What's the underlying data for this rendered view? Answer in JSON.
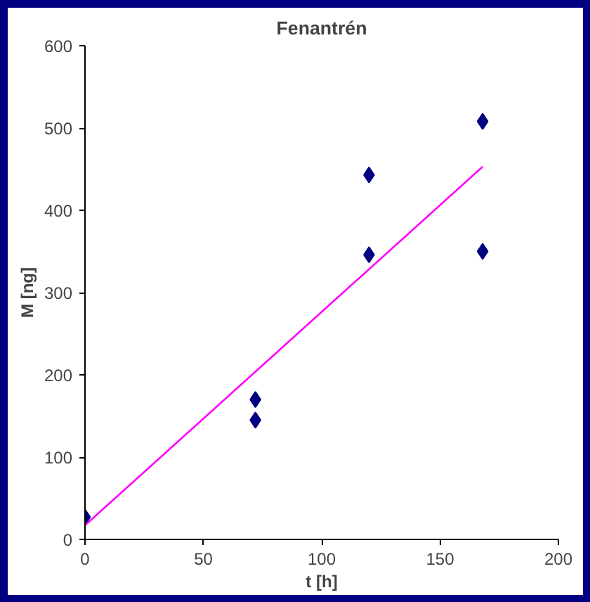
{
  "chart_data": {
    "type": "scatter",
    "title": "Fenantrén",
    "xlabel": "t [h]",
    "ylabel": "M [ng]",
    "x": [
      0,
      72,
      72,
      120,
      120,
      168,
      168
    ],
    "series": [
      {
        "color": "#000080",
        "marker": "diamond",
        "values": [
          27,
          170,
          145,
          443,
          346,
          508,
          350
        ]
      },
      {
        "type": "line",
        "color": "#ff00ff",
        "marker": "none",
        "x": [
          0,
          168
        ],
        "values": [
          17,
          453
        ]
      }
    ],
    "xlim": [
      0,
      200
    ],
    "ylim": [
      0,
      600
    ],
    "xticks": [
      0,
      50,
      100,
      150,
      200
    ],
    "yticks": [
      0,
      100,
      200,
      300,
      400,
      500,
      600
    ],
    "grid": false
  }
}
